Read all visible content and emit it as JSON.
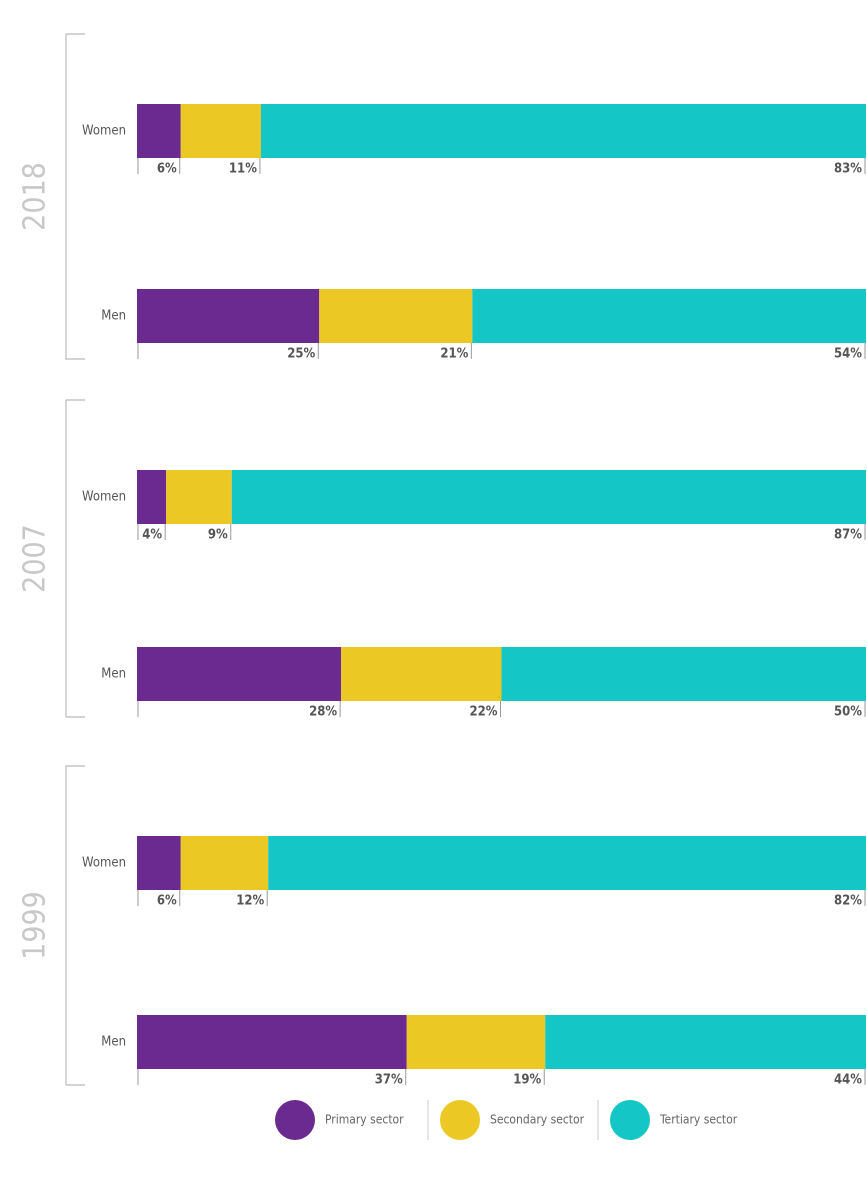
{
  "chart_data": {
    "type": "stacked-bar",
    "groups": [
      "2018",
      "2007",
      "1999"
    ],
    "categories": [
      "Women",
      "Men",
      "Women",
      "Men",
      "Women",
      "Men"
    ],
    "xlim": [
      0,
      100
    ],
    "series": [
      {
        "name": "Primary sector",
        "color": "#6b2a8f",
        "values": [
          6,
          25,
          4,
          28,
          6,
          37
        ],
        "value_labels": [
          "6%",
          "25%",
          "4%",
          "28%",
          "6%",
          "37%"
        ]
      },
      {
        "name": "Secondary sector",
        "color": "#ebc823",
        "values": [
          11,
          21,
          9,
          22,
          12,
          19
        ],
        "value_labels": [
          "11%",
          "21%",
          "9%",
          "22%",
          "12%",
          "19%"
        ]
      },
      {
        "name": "Tertiary sector",
        "color": "#14c6c6",
        "values": [
          83,
          54,
          87,
          50,
          82,
          44
        ],
        "value_labels": [
          "83%",
          "54%",
          "87%",
          "50%",
          "82%",
          "44%"
        ]
      }
    ]
  }
}
